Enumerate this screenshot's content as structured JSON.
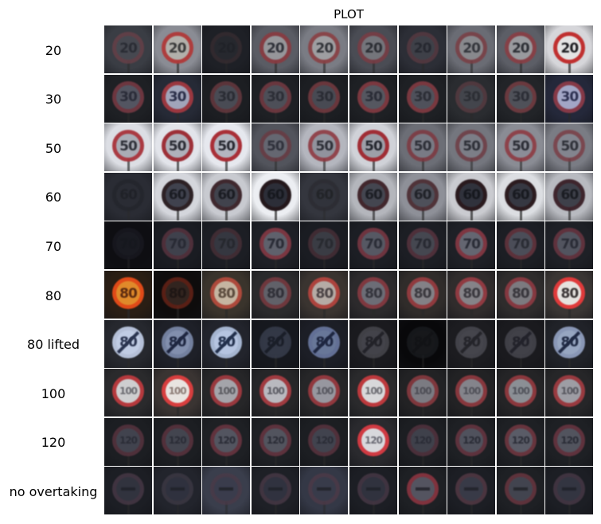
{
  "title": "PLOT",
  "rows": [
    {
      "label": "20",
      "kind": "speed",
      "text": "20",
      "cells": [
        {
          "bg": "#3a3d44",
          "ring": "#6a4048",
          "face": "#4a4c54",
          "num": "#2a2c34",
          "fade": 0.5
        },
        {
          "bg": "#8a8c94",
          "ring": "#b03a3a",
          "face": "#b4b2ac",
          "num": "#3a3a3a",
          "fade": 0.9
        },
        {
          "bg": "#1e2026",
          "ring": "#3a2e32",
          "face": "#2a2c32",
          "num": "#202228",
          "fade": 0.3
        },
        {
          "bg": "#5a5c64",
          "ring": "#8a3a40",
          "face": "#9c9ca0",
          "num": "#30323a",
          "fade": 0.8
        },
        {
          "bg": "#7a7c84",
          "ring": "#8a4044",
          "face": "#a2a2a4",
          "num": "#33353a",
          "fade": 0.8
        },
        {
          "bg": "#4a4c54",
          "ring": "#7a3c44",
          "face": "#7c7c82",
          "num": "#2c2e34",
          "fade": 0.7
        },
        {
          "bg": "#2c2e36",
          "ring": "#5a3a42",
          "face": "#44464e",
          "num": "#262830",
          "fade": 0.5
        },
        {
          "bg": "#6a6c74",
          "ring": "#7a3e44",
          "face": "#8e8e92",
          "num": "#34363c",
          "fade": 0.7
        },
        {
          "bg": "#5c5e66",
          "ring": "#8a3e44",
          "face": "#a0a0a4",
          "num": "#2e3036",
          "fade": 0.8
        },
        {
          "bg": "#d6d6da",
          "ring": "#c03030",
          "face": "#e4e4e4",
          "num": "#1e1e22",
          "fade": 1.0
        }
      ]
    },
    {
      "label": "30",
      "kind": "speed",
      "text": "30",
      "cells": [
        {
          "bg": "#1e2024",
          "ring": "#7a3a44",
          "face": "#5c5e6c",
          "num": "#2a2c38",
          "fade": 0.7
        },
        {
          "bg": "#262a36",
          "ring": "#a03840",
          "face": "#a6aac0",
          "num": "#2a2e48",
          "fade": 0.9
        },
        {
          "bg": "#1c1e22",
          "ring": "#6a3a40",
          "face": "#545660",
          "num": "#2a2c34",
          "fade": 0.6
        },
        {
          "bg": "#1e2024",
          "ring": "#7a3c44",
          "face": "#585a64",
          "num": "#2c2e36",
          "fade": 0.6
        },
        {
          "bg": "#1c1e22",
          "ring": "#7a3c42",
          "face": "#52545e",
          "num": "#2a2c34",
          "fade": 0.6
        },
        {
          "bg": "#1e2024",
          "ring": "#8a3c44",
          "face": "#5e606a",
          "num": "#2a2c36",
          "fade": 0.7
        },
        {
          "bg": "#1e2024",
          "ring": "#883c44",
          "face": "#585a64",
          "num": "#2c2e36",
          "fade": 0.7
        },
        {
          "bg": "#2a2c30",
          "ring": "#5a3c42",
          "face": "#4a4c54",
          "num": "#2c2e34",
          "fade": 0.5
        },
        {
          "bg": "#222428",
          "ring": "#7a3e44",
          "face": "#5a5c64",
          "num": "#2c2e36",
          "fade": 0.6
        },
        {
          "bg": "#24283a",
          "ring": "#8a3a48",
          "face": "#a8accc",
          "num": "#2c3050",
          "fade": 0.9
        }
      ]
    },
    {
      "label": "50",
      "kind": "speed",
      "text": "50",
      "cells": [
        {
          "bg": "#dcdee4",
          "ring": "#a8343c",
          "face": "#a8aab4",
          "num": "#2e3038",
          "fade": 0.9
        },
        {
          "bg": "#e2e4ea",
          "ring": "#9c2c34",
          "face": "#aeb0ba",
          "num": "#2a2c34",
          "fade": 0.95
        },
        {
          "bg": "#e6e8ee",
          "ring": "#a82c34",
          "face": "#b4b6c0",
          "num": "#262830",
          "fade": 0.95
        },
        {
          "bg": "#52545c",
          "ring": "#6a3a42",
          "face": "#6a6c76",
          "num": "#30323c",
          "fade": 0.6
        },
        {
          "bg": "#b4b6be",
          "ring": "#8e3a42",
          "face": "#8e909a",
          "num": "#2e3038",
          "fade": 0.8
        },
        {
          "bg": "#d0d2d8",
          "ring": "#a02a32",
          "face": "#9c9ea8",
          "num": "#24262e",
          "fade": 0.95
        },
        {
          "bg": "#6c6e76",
          "ring": "#7e3840",
          "face": "#7c7e88",
          "num": "#2e3038",
          "fade": 0.7
        },
        {
          "bg": "#74767e",
          "ring": "#6e3a42",
          "face": "#7e808a",
          "num": "#2e3038",
          "fade": 0.6
        },
        {
          "bg": "#8a8c94",
          "ring": "#8e3a42",
          "face": "#8c8e98",
          "num": "#2c2e36",
          "fade": 0.75
        },
        {
          "bg": "#7a7c84",
          "ring": "#7a3c44",
          "face": "#868892",
          "num": "#30323a",
          "fade": 0.6
        }
      ]
    },
    {
      "label": "60",
      "kind": "speed",
      "text": "60",
      "cells": [
        {
          "bg": "#2a2c34",
          "ring": "#22242a",
          "face": "#2a2c34",
          "num": "#202228",
          "fade": 0.3
        },
        {
          "bg": "#d4d6dc",
          "ring": "#2a1e22",
          "face": "#3e404c",
          "num": "#1a1c22",
          "fade": 0.95
        },
        {
          "bg": "#c8cad0",
          "ring": "#3a2228",
          "face": "#3c3e48",
          "num": "#1a1c22",
          "fade": 0.9
        },
        {
          "bg": "#eceef2",
          "ring": "#24181c",
          "face": "#2c2e38",
          "num": "#16181e",
          "fade": 1.0
        },
        {
          "bg": "#34363e",
          "ring": "#2a2a30",
          "face": "#30323a",
          "num": "#222428",
          "fade": 0.3
        },
        {
          "bg": "#b4b6bc",
          "ring": "#3e2228",
          "face": "#40424c",
          "num": "#1c1e24",
          "fade": 0.9
        },
        {
          "bg": "#8e9098",
          "ring": "#4a2a30",
          "face": "#484a54",
          "num": "#202228",
          "fade": 0.8
        },
        {
          "bg": "#cacbd0",
          "ring": "#2a1a1e",
          "face": "#30323c",
          "num": "#16181e",
          "fade": 1.0
        },
        {
          "bg": "#dcdee2",
          "ring": "#2c1c20",
          "face": "#363842",
          "num": "#181a20",
          "fade": 1.0
        },
        {
          "bg": "#b8bac0",
          "ring": "#3a2028",
          "face": "#3a3c46",
          "num": "#1a1c22",
          "fade": 0.9
        }
      ]
    },
    {
      "label": "70",
      "kind": "speed",
      "text": "70",
      "cells": [
        {
          "bg": "#0e0e12",
          "ring": "#1a1a22",
          "face": "#1e2028",
          "num": "#16181e",
          "fade": 0.3
        },
        {
          "bg": "#1a1c22",
          "ring": "#5a3440",
          "face": "#484a56",
          "num": "#282a34",
          "fade": 0.6
        },
        {
          "bg": "#1c1e24",
          "ring": "#4a3038",
          "face": "#3c3e48",
          "num": "#26282e",
          "fade": 0.5
        },
        {
          "bg": "#1e2026",
          "ring": "#8a3a46",
          "face": "#6a6c78",
          "num": "#2a2c36",
          "fade": 0.7
        },
        {
          "bg": "#1a1c22",
          "ring": "#4a3038",
          "face": "#44464e",
          "num": "#282a30",
          "fade": 0.5
        },
        {
          "bg": "#1c1e24",
          "ring": "#7c3844",
          "face": "#60626e",
          "num": "#2a2c36",
          "fade": 0.7
        },
        {
          "bg": "#1c1e24",
          "ring": "#5a3440",
          "face": "#4e505a",
          "num": "#282a32",
          "fade": 0.6
        },
        {
          "bg": "#1e2026",
          "ring": "#8e3a46",
          "face": "#70727e",
          "num": "#2a2c36",
          "fade": 0.7
        },
        {
          "bg": "#1c1e24",
          "ring": "#6a3640",
          "face": "#565864",
          "num": "#2a2c34",
          "fade": 0.6
        },
        {
          "bg": "#1e2026",
          "ring": "#6c3642",
          "face": "#5c5e6a",
          "num": "#2a2c36",
          "fade": 0.65
        }
      ]
    },
    {
      "label": "80",
      "kind": "speed",
      "text": "80",
      "cells": [
        {
          "bg": "#2a1e14",
          "ring": "#e04a18",
          "face": "#e08a2a",
          "num": "#5a2a10",
          "fade": 1.0
        },
        {
          "bg": "#0e0c0c",
          "ring": "#6a2418",
          "face": "#3a2a24",
          "num": "#1e1614",
          "fade": 0.6
        },
        {
          "bg": "#3a342c",
          "ring": "#b04a3c",
          "face": "#c8b8a4",
          "num": "#5a4a3c",
          "fade": 0.95
        },
        {
          "bg": "#2a2a2c",
          "ring": "#7a3a40",
          "face": "#6a6a74",
          "num": "#303038",
          "fade": 0.7
        },
        {
          "bg": "#3a3430",
          "ring": "#b0443e",
          "face": "#b8aea8",
          "num": "#4a4244",
          "fade": 0.95
        },
        {
          "bg": "#2c2a2c",
          "ring": "#8a3a42",
          "face": "#747680",
          "num": "#34343c",
          "fade": 0.75
        },
        {
          "bg": "#302c2a",
          "ring": "#9a3c40",
          "face": "#8c8a90",
          "num": "#3a383e",
          "fade": 0.8
        },
        {
          "bg": "#302c2c",
          "ring": "#9a3c44",
          "face": "#8e8c92",
          "num": "#3a383e",
          "fade": 0.8
        },
        {
          "bg": "#2e2c2c",
          "ring": "#8e3a42",
          "face": "#848288",
          "num": "#38363c",
          "fade": 0.8
        },
        {
          "bg": "#3a3634",
          "ring": "#e03a3a",
          "face": "#e6e2de",
          "num": "#3a3434",
          "fade": 1.0
        }
      ]
    },
    {
      "label": "80 lifted",
      "kind": "lifted",
      "text": "80",
      "cells": [
        {
          "bg": "#26282e",
          "ring": "#b8c4dc",
          "face": "#c4d0e8",
          "num": "#2a3450",
          "fade": 0.95
        },
        {
          "bg": "#1e2028",
          "ring": "#7a88a8",
          "face": "#8a98b8",
          "num": "#1e2640",
          "fade": 0.85
        },
        {
          "bg": "#22242c",
          "ring": "#a8b8d4",
          "face": "#b8c8e4",
          "num": "#22304c",
          "fade": 0.95
        },
        {
          "bg": "#16181e",
          "ring": "#3a4050",
          "face": "#3c4252",
          "num": "#1a1e28",
          "fade": 0.5
        },
        {
          "bg": "#1c1e26",
          "ring": "#6a78a0",
          "face": "#7080a4",
          "num": "#1e2640",
          "fade": 0.8
        },
        {
          "bg": "#1a1a1e",
          "ring": "#4a4a50",
          "face": "#4e4e56",
          "num": "#222228",
          "fade": 0.55
        },
        {
          "bg": "#08080a",
          "ring": "#1c1e22",
          "face": "#1e2024",
          "num": "#121316",
          "fade": 0.3
        },
        {
          "bg": "#1c1c20",
          "ring": "#4c4c54",
          "face": "#505058",
          "num": "#24242a",
          "fade": 0.55
        },
        {
          "bg": "#1a1a1e",
          "ring": "#4a4a52",
          "face": "#4c4c54",
          "num": "#22222a",
          "fade": 0.5
        },
        {
          "bg": "#202228",
          "ring": "#8e9cbc",
          "face": "#9cacc8",
          "num": "#202a44",
          "fade": 0.9
        }
      ]
    },
    {
      "label": "100",
      "kind": "speed",
      "text": "100",
      "cells": [
        {
          "bg": "#2a2a2c",
          "ring": "#b83a3e",
          "face": "#d2d2d4",
          "num": "#6a6a70",
          "fade": 0.95
        },
        {
          "bg": "#3a3432",
          "ring": "#d83e3e",
          "face": "#e8e4e0",
          "num": "#8a7a74",
          "fade": 1.0
        },
        {
          "bg": "#262628",
          "ring": "#a23a40",
          "face": "#aeaeb4",
          "num": "#58585e",
          "fade": 0.85
        },
        {
          "bg": "#262628",
          "ring": "#a63c42",
          "face": "#c0c0c6",
          "num": "#5c5c64",
          "fade": 0.9
        },
        {
          "bg": "#262628",
          "ring": "#9a3a40",
          "face": "#a0a0a8",
          "num": "#56565e",
          "fade": 0.85
        },
        {
          "bg": "#2a2a2c",
          "ring": "#c03a3e",
          "face": "#dcdcde",
          "num": "#6c6c72",
          "fade": 0.95
        },
        {
          "bg": "#222224",
          "ring": "#8a3a40",
          "face": "#86868e",
          "num": "#4c4c54",
          "fade": 0.75
        },
        {
          "bg": "#222224",
          "ring": "#923a40",
          "face": "#8e8e96",
          "num": "#505058",
          "fade": 0.8
        },
        {
          "bg": "#242426",
          "ring": "#963a40",
          "face": "#969aa0",
          "num": "#50525a",
          "fade": 0.8
        },
        {
          "bg": "#262628",
          "ring": "#a23c42",
          "face": "#a6a6ae",
          "num": "#56565e",
          "fade": 0.85
        }
      ]
    },
    {
      "label": "120",
      "kind": "speed",
      "text": "120",
      "cells": [
        {
          "bg": "#1c1e22",
          "ring": "#5a3440",
          "face": "#4a4c58",
          "num": "#2a2c36",
          "fade": 0.6
        },
        {
          "bg": "#1c1e22",
          "ring": "#5e3440",
          "face": "#4c4e5a",
          "num": "#2a2c36",
          "fade": 0.6
        },
        {
          "bg": "#1e2024",
          "ring": "#6e3642",
          "face": "#5e606c",
          "num": "#2a2c36",
          "fade": 0.65
        },
        {
          "bg": "#1e2024",
          "ring": "#6a3642",
          "face": "#5c5e6a",
          "num": "#2a2c36",
          "fade": 0.65
        },
        {
          "bg": "#1c1e22",
          "ring": "#5c3440",
          "face": "#4a4c58",
          "num": "#2a2c36",
          "fade": 0.6
        },
        {
          "bg": "#2a2a2e",
          "ring": "#d03a42",
          "face": "#d8d8dc",
          "num": "#6a6a74",
          "fade": 1.0
        },
        {
          "bg": "#1c1e22",
          "ring": "#563440",
          "face": "#484a56",
          "num": "#2a2c36",
          "fade": 0.55
        },
        {
          "bg": "#1e2024",
          "ring": "#6a3642",
          "face": "#5a5c68",
          "num": "#2a2c36",
          "fade": 0.65
        },
        {
          "bg": "#1e2024",
          "ring": "#743842",
          "face": "#646672",
          "num": "#2c2e38",
          "fade": 0.7
        },
        {
          "bg": "#1e2024",
          "ring": "#6c3642",
          "face": "#5c5e6a",
          "num": "#2a2c36",
          "fade": 0.65
        }
      ]
    },
    {
      "label": "no overtaking",
      "kind": "overtaking",
      "text": "",
      "cells": [
        {
          "bg": "#1c1e24",
          "ring": "#4a3a48",
          "face": "#383a46",
          "num": "#22242c",
          "fade": 0.5
        },
        {
          "bg": "#22242c",
          "ring": "#3e3a46",
          "face": "#343644",
          "num": "#22242c",
          "fade": 0.45
        },
        {
          "bg": "#3a3e4c",
          "ring": "#4a3a48",
          "face": "#3a3c4c",
          "num": "#24262e",
          "fade": 0.5
        },
        {
          "bg": "#1e2026",
          "ring": "#4a3a48",
          "face": "#363846",
          "num": "#22242c",
          "fade": 0.5
        },
        {
          "bg": "#343846",
          "ring": "#4e3a48",
          "face": "#3a3c4c",
          "num": "#24262e",
          "fade": 0.5
        },
        {
          "bg": "#1c1e24",
          "ring": "#4a3a48",
          "face": "#363846",
          "num": "#22242c",
          "fade": 0.5
        },
        {
          "bg": "#1e2024",
          "ring": "#8a3440",
          "face": "#5a5a66",
          "num": "#2a2a32",
          "fade": 0.8
        },
        {
          "bg": "#1c1e24",
          "ring": "#563a46",
          "face": "#404250",
          "num": "#24262e",
          "fade": 0.55
        },
        {
          "bg": "#1e2024",
          "ring": "#6a3640",
          "face": "#4a4c58",
          "num": "#26282e",
          "fade": 0.65
        },
        {
          "bg": "#1c1e24",
          "ring": "#4a3a48",
          "face": "#3a3c4a",
          "num": "#22242c",
          "fade": 0.5
        }
      ]
    }
  ]
}
